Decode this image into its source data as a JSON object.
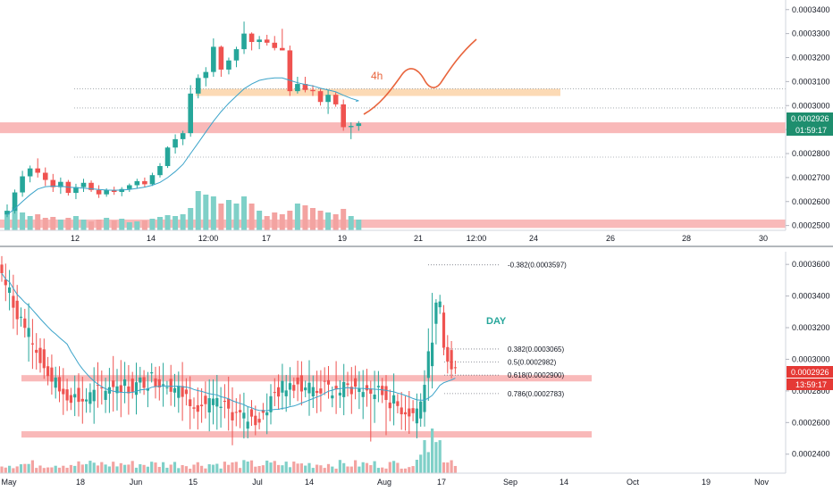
{
  "colors": {
    "bull": "#26a69a",
    "bear": "#ef5350",
    "vol_bull": "#7fd0c8",
    "vol_bear": "#f3a3a1",
    "zone_red": "#f7a8a8",
    "zone_orange": "#fbd3a8",
    "sma": "#3ba3c9",
    "projection": "#e8643c",
    "axis_text": "#131722",
    "badge_green": "#1e8e6e",
    "badge_red": "#e53935",
    "grid_sep": "#9aa0a6"
  },
  "chart_data": [
    {
      "type": "candlestick",
      "timeframe_label": "4h",
      "ylim": [
        0.000248,
        0.000344
      ],
      "y_ticks": [
        "0.0003400",
        "0.0003300",
        "0.0003200",
        "0.0003100",
        "0.0003000",
        "0.0002900",
        "0.0002800",
        "0.0002700",
        "0.0002600",
        "0.0002500"
      ],
      "x_ticks": [
        "12",
        "14",
        "12:00",
        "17",
        "19",
        "21",
        "12:00",
        "24",
        "26",
        "28",
        "30"
      ],
      "last_price_label": "0.0002926",
      "countdown_label": "01:59:17",
      "candles": [
        {
          "o": 0.0002546,
          "h": 0.0002588,
          "l": 0.0002535,
          "c": 0.0002561
        },
        {
          "o": 0.0002561,
          "h": 0.000265,
          "l": 0.000255,
          "c": 0.0002638
        },
        {
          "o": 0.0002638,
          "h": 0.0002728,
          "l": 0.000262,
          "c": 0.0002705
        },
        {
          "o": 0.0002705,
          "h": 0.000275,
          "l": 0.000268,
          "c": 0.0002738
        },
        {
          "o": 0.0002738,
          "h": 0.000278,
          "l": 0.00027,
          "c": 0.000272
        },
        {
          "o": 0.000272,
          "h": 0.0002742,
          "l": 0.0002665,
          "c": 0.000269
        },
        {
          "o": 0.000269,
          "h": 0.0002715,
          "l": 0.000264,
          "c": 0.000266
        },
        {
          "o": 0.000266,
          "h": 0.00027,
          "l": 0.0002632,
          "c": 0.0002682
        },
        {
          "o": 0.0002682,
          "h": 0.000269,
          "l": 0.0002625,
          "c": 0.0002636
        },
        {
          "o": 0.0002636,
          "h": 0.0002674,
          "l": 0.000261,
          "c": 0.000266
        },
        {
          "o": 0.000266,
          "h": 0.0002695,
          "l": 0.000264,
          "c": 0.0002678
        },
        {
          "o": 0.0002678,
          "h": 0.0002688,
          "l": 0.000264,
          "c": 0.0002648
        },
        {
          "o": 0.0002648,
          "h": 0.0002668,
          "l": 0.0002615,
          "c": 0.000263
        },
        {
          "o": 0.000263,
          "h": 0.0002655,
          "l": 0.000262,
          "c": 0.0002648
        },
        {
          "o": 0.0002648,
          "h": 0.0002662,
          "l": 0.0002628,
          "c": 0.000264
        },
        {
          "o": 0.000264,
          "h": 0.000266,
          "l": 0.0002622,
          "c": 0.0002652
        },
        {
          "o": 0.0002652,
          "h": 0.0002675,
          "l": 0.000264,
          "c": 0.0002668
        },
        {
          "o": 0.0002668,
          "h": 0.0002695,
          "l": 0.0002655,
          "c": 0.0002685
        },
        {
          "o": 0.0002685,
          "h": 0.00027,
          "l": 0.000266,
          "c": 0.0002672
        },
        {
          "o": 0.0002672,
          "h": 0.000272,
          "l": 0.0002665,
          "c": 0.000271
        },
        {
          "o": 0.000271,
          "h": 0.000276,
          "l": 0.00027,
          "c": 0.0002748
        },
        {
          "o": 0.0002748,
          "h": 0.000283,
          "l": 0.000274,
          "c": 0.0002825
        },
        {
          "o": 0.0002825,
          "h": 0.000288,
          "l": 0.00028,
          "c": 0.000286
        },
        {
          "o": 0.000286,
          "h": 0.0002895,
          "l": 0.0002835,
          "c": 0.0002885
        },
        {
          "o": 0.0002885,
          "h": 0.0003085,
          "l": 0.000287,
          "c": 0.000305
        },
        {
          "o": 0.000305,
          "h": 0.000313,
          "l": 0.000303,
          "c": 0.0003115
        },
        {
          "o": 0.0003115,
          "h": 0.000316,
          "l": 0.000308,
          "c": 0.000314
        },
        {
          "o": 0.000314,
          "h": 0.000328,
          "l": 0.000312,
          "c": 0.0003245
        },
        {
          "o": 0.0003245,
          "h": 0.000325,
          "l": 0.000312,
          "c": 0.000315
        },
        {
          "o": 0.000315,
          "h": 0.00032,
          "l": 0.000313,
          "c": 0.0003188
        },
        {
          "o": 0.0003188,
          "h": 0.0003245,
          "l": 0.000316,
          "c": 0.0003235
        },
        {
          "o": 0.0003235,
          "h": 0.000335,
          "l": 0.0003215,
          "c": 0.00033
        },
        {
          "o": 0.00033,
          "h": 0.0003305,
          "l": 0.000323,
          "c": 0.0003265
        },
        {
          "o": 0.0003265,
          "h": 0.000329,
          "l": 0.0003235,
          "c": 0.0003275
        },
        {
          "o": 0.0003275,
          "h": 0.0003295,
          "l": 0.000325,
          "c": 0.0003262
        },
        {
          "o": 0.0003262,
          "h": 0.000329,
          "l": 0.000323,
          "c": 0.000324
        },
        {
          "o": 0.000324,
          "h": 0.000332,
          "l": 0.000323,
          "c": 0.000323
        },
        {
          "o": 0.000323,
          "h": 0.000325,
          "l": 0.000304,
          "c": 0.000306
        },
        {
          "o": 0.000306,
          "h": 0.000312,
          "l": 0.000305,
          "c": 0.000309
        },
        {
          "o": 0.000309,
          "h": 0.000312,
          "l": 0.0003055,
          "c": 0.0003065
        },
        {
          "o": 0.0003065,
          "h": 0.0003085,
          "l": 0.000304,
          "c": 0.000306
        },
        {
          "o": 0.000306,
          "h": 0.000307,
          "l": 0.0003,
          "c": 0.0003015
        },
        {
          "o": 0.0003015,
          "h": 0.0003065,
          "l": 0.0002965,
          "c": 0.0003045
        },
        {
          "o": 0.0003045,
          "h": 0.0003055,
          "l": 0.0002995,
          "c": 0.0003005
        },
        {
          "o": 0.0003005,
          "h": 0.0003025,
          "l": 0.0002895,
          "c": 0.000291
        },
        {
          "o": 0.000291,
          "h": 0.000293,
          "l": 0.000286,
          "c": 0.0002915
        },
        {
          "o": 0.0002915,
          "h": 0.0002935,
          "l": 0.0002895,
          "c": 0.0002926
        }
      ],
      "volumes": [
        22,
        26,
        20,
        16,
        18,
        14,
        15,
        12,
        14,
        16,
        12,
        10,
        12,
        14,
        11,
        13,
        9,
        10,
        11,
        13,
        15,
        17,
        16,
        18,
        25,
        44,
        40,
        38,
        30,
        34,
        30,
        38,
        30,
        22,
        16,
        20,
        18,
        22,
        30,
        28,
        25,
        22,
        20,
        18,
        24,
        16,
        12
      ],
      "sma": [
        0.0002545,
        0.000257,
        0.00026,
        0.0002628,
        0.0002652,
        0.0002662,
        0.0002664,
        0.0002664,
        0.000266,
        0.0002658,
        0.0002656,
        0.0002653,
        0.000265,
        0.0002648,
        0.0002647,
        0.0002648,
        0.000265,
        0.0002655,
        0.000266,
        0.0002668,
        0.000268,
        0.00027,
        0.0002725,
        0.0002755,
        0.00028,
        0.0002845,
        0.000289,
        0.0002935,
        0.0002975,
        0.000301,
        0.000304,
        0.000307,
        0.000309,
        0.0003105,
        0.0003112,
        0.0003115,
        0.0003115,
        0.0003105,
        0.0003095,
        0.0003088,
        0.0003082,
        0.0003072,
        0.0003065,
        0.0003057,
        0.0003043,
        0.000303,
        0.000302
      ],
      "zones": [
        {
          "y1": 0.000293,
          "y2": 0.0002885,
          "color": "red"
        },
        {
          "y1": 0.000307,
          "y2": 0.000304,
          "color": "orange"
        },
        {
          "y1": 0.0002525,
          "y2": 0.000249,
          "color": "red"
        }
      ],
      "dotted_levels": [
        0.000307,
        0.000299,
        0.0002785
      ]
    },
    {
      "type": "candlestick",
      "timeframe_label": "DAY",
      "ylim": [
        0.000228,
        0.000368
      ],
      "y_ticks": [
        "0.0003600",
        "0.0003400",
        "0.0003200",
        "0.0003000",
        "0.0002800",
        "0.0002600",
        "0.0002400"
      ],
      "x_ticks": [
        "May",
        "18",
        "Jun",
        "15",
        "Jul",
        "14",
        "Aug",
        "17",
        "Sep",
        "14",
        "Oct",
        "19",
        "Nov"
      ],
      "last_price_label": "0.0002926",
      "countdown_label": "13:59:17",
      "fib_levels": [
        {
          "label": "-0.382(0.0003597)",
          "value": 0.0003597
        },
        {
          "label": "0.382(0.0003065)",
          "value": 0.0003065
        },
        {
          "label": "0.5(0.0002982)",
          "value": 0.0002982
        },
        {
          "label": "0.618(0.0002900)",
          "value": 0.00029
        },
        {
          "label": "0.786(0.0002783)",
          "value": 0.0002783
        }
      ],
      "zones": [
        {
          "y1": 0.00029,
          "y2": 0.000286,
          "color": "red"
        },
        {
          "y1": 0.0002545,
          "y2": 0.0002505,
          "color": "red"
        }
      ]
    }
  ]
}
